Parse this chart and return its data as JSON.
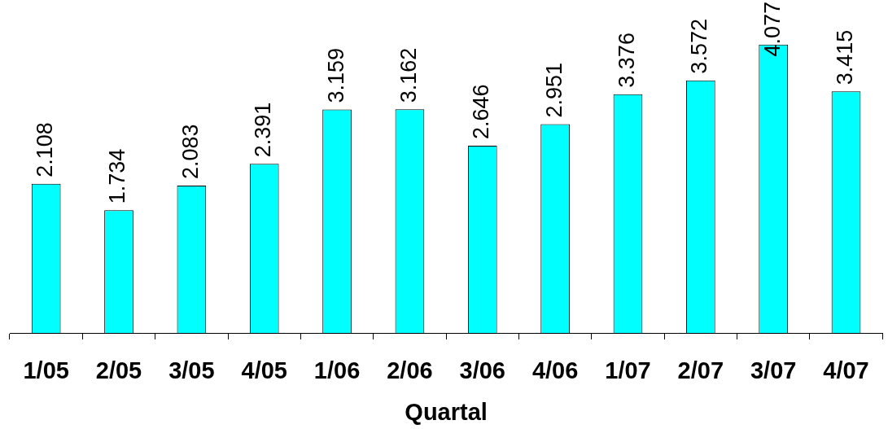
{
  "chart_data": {
    "type": "bar",
    "xlabel": "Quartal",
    "categories": [
      "1/05",
      "2/05",
      "3/05",
      "4/05",
      "1/06",
      "2/06",
      "3/06",
      "4/06",
      "1/07",
      "2/07",
      "3/07",
      "4/07"
    ],
    "values": [
      2.108,
      1.734,
      2.083,
      2.391,
      3.159,
      3.162,
      2.646,
      2.951,
      3.376,
      3.572,
      4.077,
      3.415
    ],
    "color": "#00ffff",
    "data_labels": true,
    "tick_labels": "x"
  }
}
